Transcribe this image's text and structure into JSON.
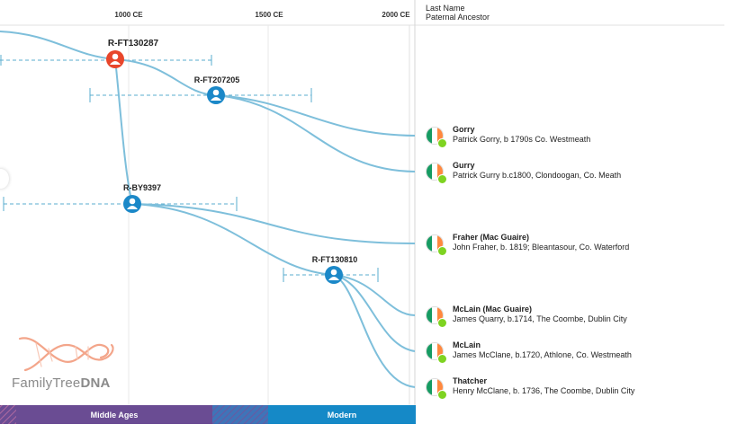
{
  "timeline": {
    "ticks": [
      "1000 CE",
      "1500 CE",
      "2000 CE"
    ],
    "eras": [
      "Middle Ages",
      "Modern"
    ]
  },
  "columns": {
    "last_name": "Last Name",
    "paternal_ancestor": "Paternal Ancestor"
  },
  "haplogroups": [
    "R-FT130287",
    "R-FT207205",
    "R-BY9397",
    "R-FT130810"
  ],
  "lineages": [
    {
      "surname": "Gorry",
      "ancestor": "Patrick Gorry, b 1790s Co. Westmeath"
    },
    {
      "surname": "Gurry",
      "ancestor": "Patrick Gurry b.c1800, Clondoogan, Co. Meath"
    },
    {
      "surname": "Fraher (Mac Guaire)",
      "ancestor": "John Fraher, b. 1819; Bleantasour, Co. Waterford"
    },
    {
      "surname": "McLain (Mac Guaire)",
      "ancestor": "James Quarry, b.1714, The Coombe, Dublin City"
    },
    {
      "surname": "McLain",
      "ancestor": "James McClane, b.1720, Athlone, Co. Westmeath"
    },
    {
      "surname": "Thatcher",
      "ancestor": "Henry McClane, b. 1736, The Coombe, Dublin City"
    }
  ],
  "brand": {
    "name_light": "FamilyTree",
    "name_bold": "DNA"
  },
  "colors": {
    "branch": "#7ebfdb",
    "node_blue": "#1b88c8",
    "node_root": "#e8462b",
    "era_middle_ages": "#6a4c93",
    "era_modern": "#1589c7",
    "flag_green": "#169b62",
    "flag_orange": "#ff883e",
    "status_dot": "#7ed321"
  }
}
